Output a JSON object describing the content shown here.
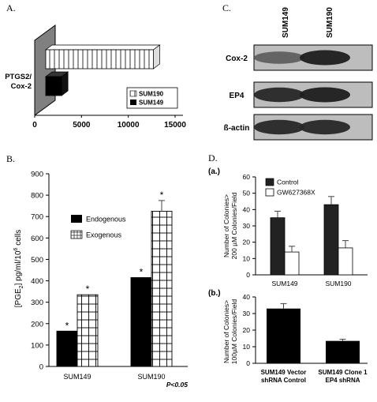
{
  "panels": {
    "A": {
      "letter": "A.",
      "chart_data": {
        "type": "bar",
        "orientation": "horizontal",
        "style": "3d",
        "ylabel_lines": [
          "PTGS2/",
          "Cox-2"
        ],
        "xlim": [
          0,
          15000
        ],
        "x_ticks": [
          "0",
          "5000",
          "10000",
          "15000"
        ],
        "series": [
          {
            "name": "SUM190",
            "value": 11500,
            "pattern": "vertical-lines"
          },
          {
            "name": "SUM149",
            "value": 1700,
            "pattern": "solid"
          }
        ],
        "legend_position": "bottom-right"
      }
    },
    "B": {
      "letter": "B.",
      "chart_data": {
        "type": "bar",
        "categories": [
          "SUM149",
          "SUM190"
        ],
        "series": [
          {
            "name": "Endogenous",
            "values": [
              165,
              415
            ],
            "pattern": "solid"
          },
          {
            "name": "Exogenous",
            "values": [
              335,
              725
            ],
            "pattern": "grid",
            "errors": [
              0,
              50
            ]
          }
        ],
        "significance_mark": "*",
        "ylabel_parts": [
          "[PGE",
          "2",
          "] pg/ml/10",
          "6",
          " cells"
        ],
        "ylim": [
          0,
          900
        ],
        "y_ticks": [
          "0",
          "100",
          "200",
          "300",
          "400",
          "500",
          "600",
          "700",
          "800",
          "900"
        ],
        "footnote": "P<0.05",
        "legend_position": "top-left"
      }
    },
    "C": {
      "letter": "C.",
      "lanes": [
        "SUM149",
        "SUM190"
      ],
      "rows": [
        {
          "label": "Cox-2",
          "intensities": [
            0.55,
            0.9
          ]
        },
        {
          "label": "EP4",
          "intensities": [
            0.85,
            0.9
          ]
        },
        {
          "label": "ß-actin",
          "intensities": [
            0.85,
            0.85
          ]
        }
      ]
    },
    "D": {
      "letter": "D.",
      "sub_a": {
        "letter": "(a.)",
        "chart_data": {
          "type": "bar",
          "categories": [
            "SUM149",
            "SUM190"
          ],
          "series": [
            {
              "name": "Control",
              "values": [
                35,
                43
              ],
              "errors": [
                4,
                5
              ],
              "color": "#222222"
            },
            {
              "name": "GW627368X",
              "values": [
                14,
                16.5
              ],
              "errors": [
                3.5,
                4.5
              ],
              "color": "#ffffff"
            }
          ],
          "ylabel_lines": [
            "Number of Colonies>",
            "200 µM Colonies/Field"
          ],
          "ylim": [
            0,
            60
          ],
          "y_ticks": [
            "0",
            "10",
            "20",
            "30",
            "40",
            "50",
            "60"
          ],
          "legend_position": "top-left"
        }
      },
      "sub_b": {
        "letter": "(b.)",
        "chart_data": {
          "type": "bar",
          "categories": [
            [
              "SUM149 Vector",
              "shRNA Control"
            ],
            [
              "SUM149 Clone 1",
              "EP4 shRNA"
            ]
          ],
          "values": [
            33,
            13.5
          ],
          "errors": [
            3,
            1
          ],
          "ylabel_lines": [
            "Number of Colonies>",
            "100µM Colonies/Field"
          ],
          "ylim": [
            0,
            40
          ],
          "y_ticks": [
            "0",
            "10",
            "20",
            "30",
            "40"
          ]
        }
      }
    }
  }
}
